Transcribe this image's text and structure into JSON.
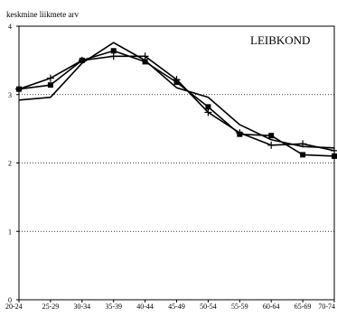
{
  "chart_data": {
    "type": "line",
    "title": "LEIBKOND",
    "ylabel": "keskmine liikmete arv",
    "xlabel": "",
    "categories": [
      "20-24",
      "25-29",
      "30-34",
      "35-39",
      "40-44",
      "45-49",
      "50-54",
      "55-59",
      "60-64",
      "65-69",
      "70-74"
    ],
    "ylim": [
      0,
      4
    ],
    "yticks": [
      0,
      1,
      2,
      3,
      4
    ],
    "grid": "horizontal dotted at 1, 2, 3",
    "legend": "none",
    "series": [
      {
        "marker": "square",
        "values": [
          3.08,
          3.14,
          3.5,
          3.64,
          3.48,
          3.18,
          2.82,
          2.42,
          2.4,
          2.12,
          2.1
        ]
      },
      {
        "marker": "plus",
        "values": [
          3.08,
          3.24,
          3.5,
          3.56,
          3.56,
          3.22,
          2.74,
          2.44,
          2.26,
          2.28,
          2.18
        ]
      },
      {
        "marker": "none",
        "values": [
          2.92,
          2.96,
          3.46,
          3.76,
          3.5,
          3.1,
          2.96,
          2.56,
          2.34,
          2.24,
          2.22
        ]
      }
    ],
    "colors": {
      "line": "#000000",
      "grid": "#000000",
      "background": "#ffffff"
    }
  }
}
